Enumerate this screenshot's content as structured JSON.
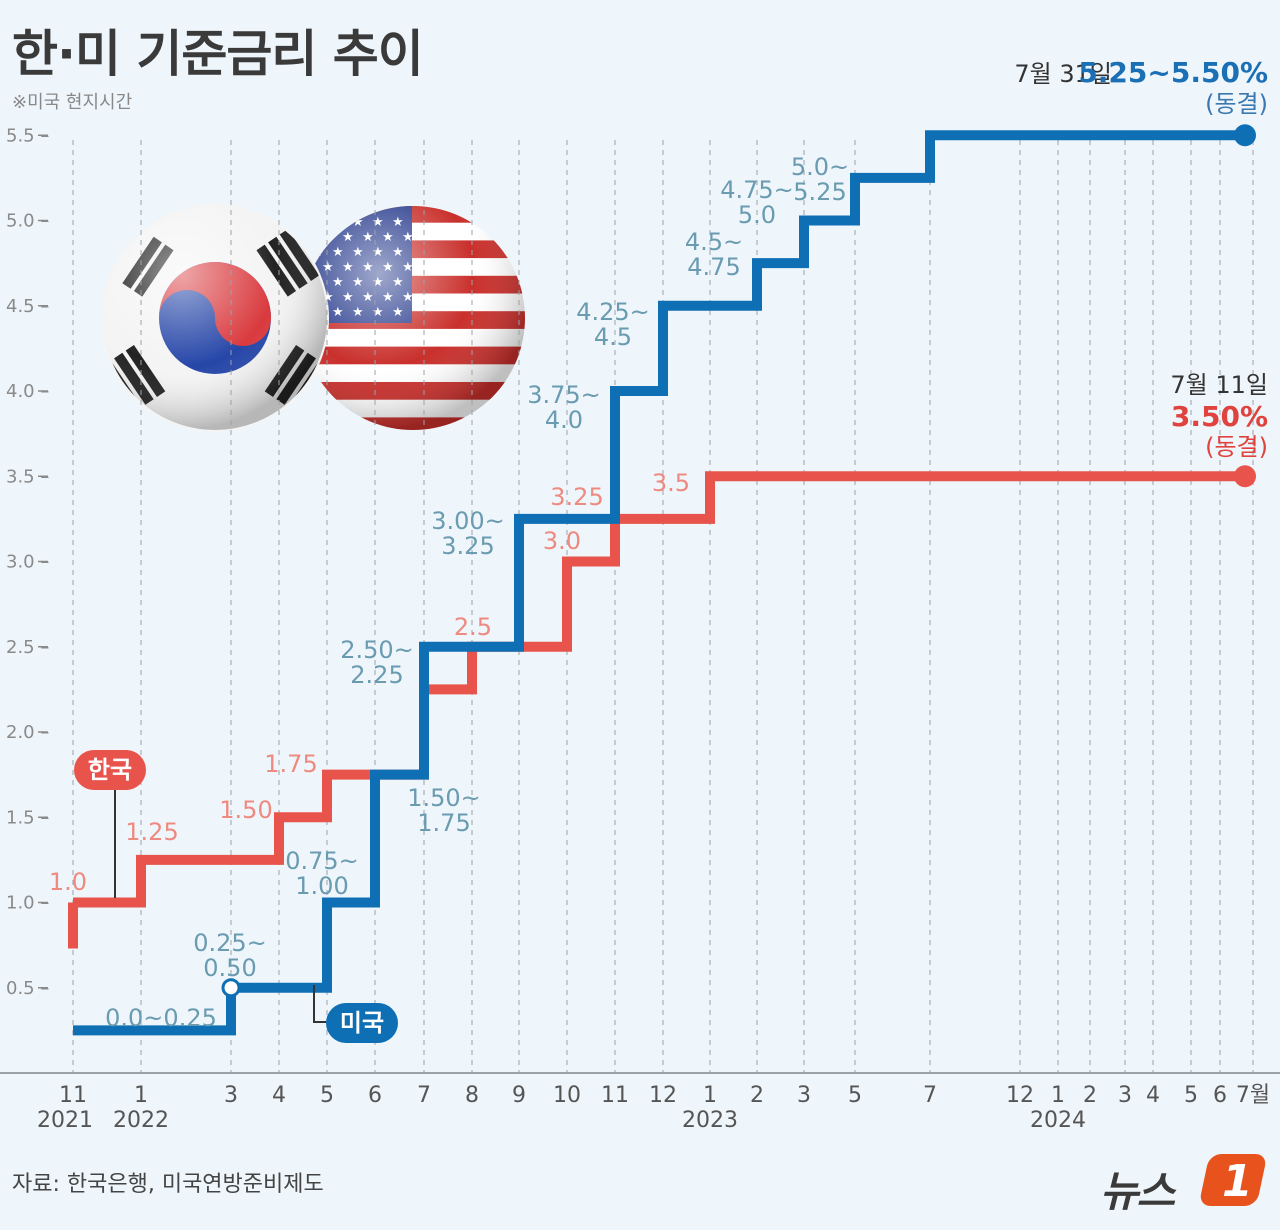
{
  "title": "한·미 기준금리 추이",
  "note": "※미국 현지시간",
  "source": "자료: 한국은행, 미국연방준비제도",
  "logo": {
    "text": "뉴스",
    "badge": "1"
  },
  "colors": {
    "us": "#0f6fb5",
    "kr": "#e8534b",
    "background": "#eef6fb"
  },
  "chart_data": {
    "type": "line",
    "step": true,
    "ylim": [
      0,
      5.5
    ],
    "yticks": [
      "0.5",
      "1.0",
      "1.5",
      "2.0",
      "2.5",
      "3.0",
      "3.5",
      "4.0",
      "4.5",
      "5.0",
      "5.5"
    ],
    "x_months": [
      {
        "label": "11",
        "year": "2021"
      },
      {
        "label": "1",
        "year": "2022"
      },
      {
        "label": "3"
      },
      {
        "label": "4"
      },
      {
        "label": "5"
      },
      {
        "label": "6"
      },
      {
        "label": "7"
      },
      {
        "label": "8"
      },
      {
        "label": "9"
      },
      {
        "label": "10"
      },
      {
        "label": "11"
      },
      {
        "label": "12"
      },
      {
        "label": "1",
        "year": "2023"
      },
      {
        "label": "2"
      },
      {
        "label": "3"
      },
      {
        "label": "5"
      },
      {
        "label": "7"
      },
      {
        "label": "12"
      },
      {
        "label": "1",
        "year": "2024"
      },
      {
        "label": "2"
      },
      {
        "label": "3"
      },
      {
        "label": "4"
      },
      {
        "label": "5"
      },
      {
        "label": "6"
      },
      {
        "label": "7월"
      }
    ],
    "series": [
      {
        "name": "한국",
        "steps": [
          {
            "month": 0,
            "value": 1.0,
            "label": "1.0"
          },
          {
            "month": 1,
            "value": 1.25,
            "label": "1.25"
          },
          {
            "month": 3,
            "value": 1.5,
            "label": "1.50"
          },
          {
            "month": 4,
            "value": 1.75,
            "label": "1.75"
          },
          {
            "month": 6,
            "value": 2.25,
            "label": ""
          },
          {
            "month": 7,
            "value": 2.5,
            "label": "2.5"
          },
          {
            "month": 9,
            "value": 3.0,
            "label": "3.0"
          },
          {
            "month": 10,
            "value": 3.25,
            "label": "3.25"
          },
          {
            "month": 12,
            "value": 3.5,
            "label": "3.5"
          }
        ],
        "end_month": 24,
        "end": {
          "date": "7월 11일",
          "value": "3.50%",
          "status": "(동결)"
        }
      },
      {
        "name": "미국",
        "steps": [
          {
            "month": 0,
            "value": 0.25,
            "label": "0.0~0.25"
          },
          {
            "month": 2,
            "value": 0.5,
            "label": "0.25~\n0.50"
          },
          {
            "month": 4,
            "value": 1.0,
            "label": "0.75~\n1.00"
          },
          {
            "month": 5,
            "value": 1.75,
            "label": "1.50~\n1.75"
          },
          {
            "month": 6,
            "value": 2.5,
            "label": "2.50~\n2.25"
          },
          {
            "month": 8,
            "value": 3.25,
            "label": "3.00~\n3.25"
          },
          {
            "month": 10,
            "value": 4.0,
            "label": "3.75~\n4.0"
          },
          {
            "month": 11,
            "value": 4.5,
            "label": "4.25~\n4.5"
          },
          {
            "month": 13,
            "value": 4.75,
            "label": "4.5~\n4.75"
          },
          {
            "month": 14,
            "value": 5.0,
            "label": "4.75~\n5.0"
          },
          {
            "month": 15,
            "value": 5.25,
            "label": "5.0~\n5.25"
          },
          {
            "month": 16,
            "value": 5.5,
            "label": ""
          }
        ],
        "end_month": 24,
        "end": {
          "date": "7월 31일",
          "value": "5.25~5.50%",
          "status": "(동결)"
        }
      }
    ]
  }
}
